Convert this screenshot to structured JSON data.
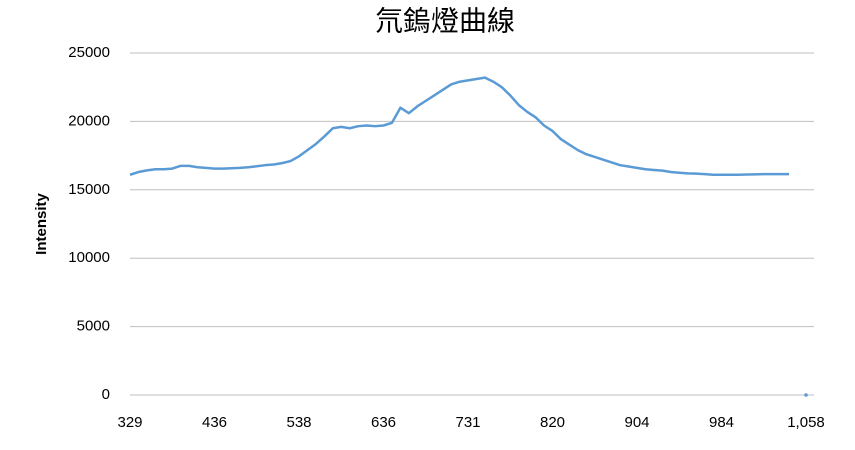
{
  "chart_data": {
    "type": "line",
    "title": "氘鎢燈曲線",
    "y_label": "Intensity",
    "categories": [
      "329",
      null,
      null,
      null,
      null,
      null,
      null,
      null,
      null,
      null,
      "436",
      null,
      null,
      null,
      null,
      null,
      null,
      null,
      null,
      null,
      "538",
      null,
      null,
      null,
      null,
      null,
      null,
      null,
      null,
      null,
      "636",
      null,
      null,
      null,
      null,
      null,
      null,
      null,
      null,
      null,
      "731",
      null,
      null,
      null,
      null,
      null,
      null,
      null,
      null,
      null,
      "820",
      null,
      null,
      null,
      null,
      null,
      null,
      null,
      null,
      null,
      "904",
      null,
      null,
      null,
      null,
      null,
      null,
      null,
      null,
      null,
      "984",
      null,
      null,
      null,
      null,
      null,
      null,
      null,
      null,
      null,
      "1,058"
    ],
    "series": [
      {
        "name": "Intensity",
        "color": "#5b9bd5",
        "values": [
          16100,
          16300,
          16420,
          16500,
          16500,
          16550,
          16750,
          16750,
          16650,
          16600,
          16550,
          16550,
          16580,
          16600,
          16650,
          16720,
          16800,
          16850,
          16950,
          17100,
          17450,
          17900,
          18350,
          18900,
          19500,
          19600,
          19500,
          19650,
          19700,
          19650,
          19700,
          19900,
          21000,
          20600,
          21100,
          21500,
          21900,
          22300,
          22700,
          22900,
          23000,
          23100,
          23200,
          22900,
          22500,
          21900,
          21200,
          20700,
          20300,
          19700,
          19300,
          18700,
          18300,
          17900,
          17600,
          17400,
          17200,
          17000,
          16800,
          16700,
          16600,
          16500,
          16450,
          16400,
          16300,
          16250,
          16200,
          16180,
          16150,
          16100,
          16100,
          16100,
          16100,
          16120,
          16130,
          16150,
          16150,
          16150,
          16150,
          null,
          0
        ]
      }
    ],
    "ylim": [
      0,
      25000
    ],
    "yticks": [
      0,
      5000,
      10000,
      15000,
      20000,
      25000
    ],
    "grid": true
  }
}
